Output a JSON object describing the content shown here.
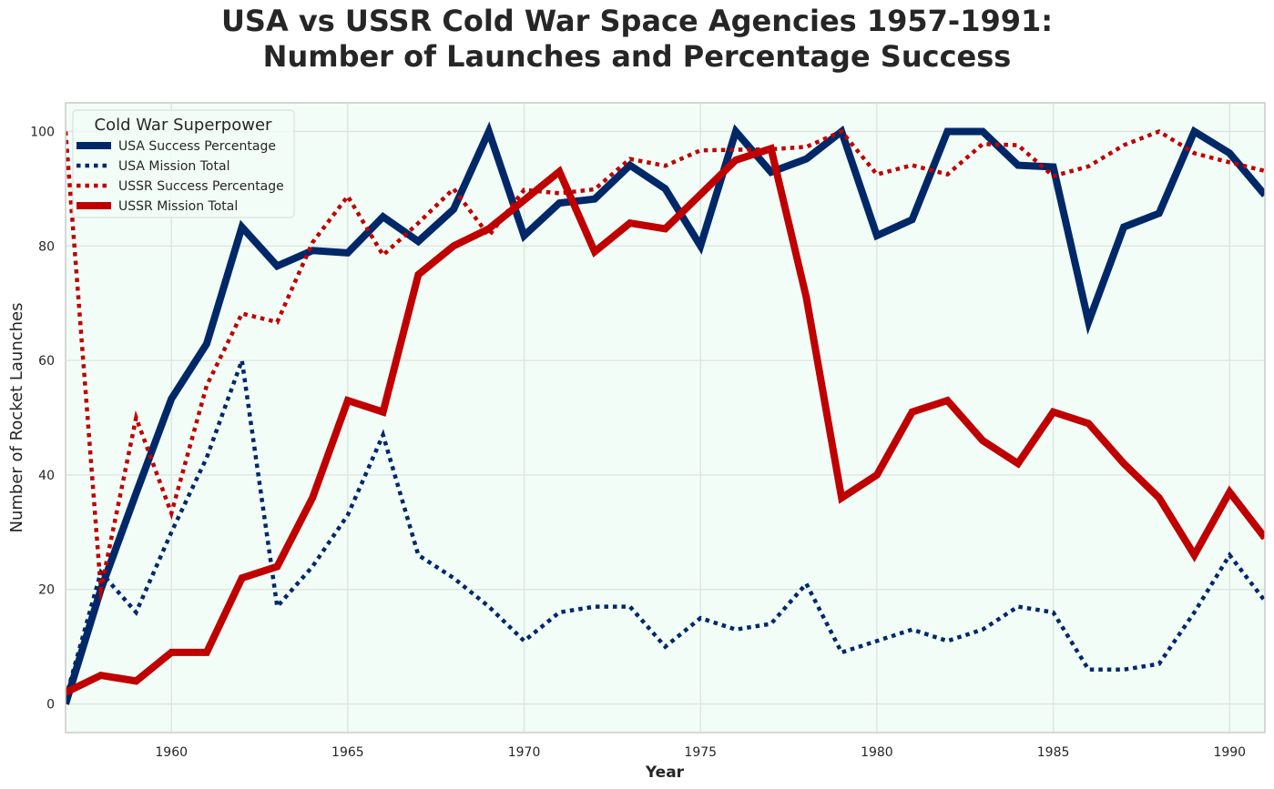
{
  "chart_data": {
    "type": "line",
    "title_line1": "USA vs USSR Cold War Space Agencies 1957-1991:",
    "title_line2": "Number of Launches and Percentage Success",
    "xlabel": "Year",
    "ylabel": "Number of Rocket Launches",
    "xlim": [
      1957,
      1991
    ],
    "ylim": [
      -5,
      105
    ],
    "xticks": [
      1960,
      1965,
      1970,
      1975,
      1980,
      1985,
      1990
    ],
    "yticks": [
      0,
      20,
      40,
      60,
      80,
      100
    ],
    "grid": true,
    "legend_title": "Cold War Superpower",
    "legend_position": "upper-left",
    "colors": {
      "usa": "#002868",
      "ussr": "#C00000",
      "plot_background": "#F2FDF7",
      "grid": "#DDE3E0"
    },
    "x": [
      1957,
      1958,
      1959,
      1960,
      1961,
      1962,
      1963,
      1964,
      1965,
      1966,
      1967,
      1968,
      1969,
      1970,
      1971,
      1972,
      1973,
      1974,
      1975,
      1976,
      1977,
      1978,
      1979,
      1980,
      1981,
      1982,
      1983,
      1984,
      1985,
      1986,
      1987,
      1988,
      1989,
      1990,
      1991
    ],
    "series": [
      {
        "name": "USA Success Percentage",
        "color": "#002868",
        "style": "solid",
        "values": [
          0,
          20,
          36.8,
          53.3,
          62.9,
          83.3,
          76.5,
          79.2,
          78.8,
          85.1,
          80.8,
          86.4,
          100,
          81.8,
          87.5,
          88.2,
          94.1,
          90,
          80,
          100,
          92.9,
          95.2,
          100,
          81.8,
          84.6,
          100,
          100,
          94.1,
          93.8,
          66.7,
          83.3,
          85.7,
          100,
          96.2,
          88.9
        ]
      },
      {
        "name": "USA Mission Total",
        "color": "#002868",
        "style": "dotted",
        "values": [
          1,
          23,
          16,
          30,
          43,
          60,
          17,
          24,
          33,
          47,
          26,
          22,
          17,
          11,
          16,
          17,
          17,
          10,
          15,
          13,
          14,
          21,
          9,
          11,
          13,
          11,
          13,
          17,
          16,
          6,
          6,
          7,
          16,
          26,
          18
        ]
      },
      {
        "name": "USSR Success Percentage",
        "color": "#C00000",
        "style": "dotted",
        "values": [
          100,
          20,
          50,
          33.3,
          55.6,
          68.2,
          66.7,
          80.6,
          88.7,
          78.4,
          84,
          90,
          81.8,
          89.8,
          89.2,
          89.9,
          95.2,
          94,
          96.7,
          96.8,
          96.9,
          97.3,
          100,
          92.5,
          94.1,
          92.5,
          97.8,
          97.6,
          92.2,
          93.9,
          97.6,
          100,
          96.2,
          94.6,
          93.1
        ]
      },
      {
        "name": "USSR Mission Total",
        "color": "#C00000",
        "style": "solid",
        "values": [
          2,
          5,
          4,
          9,
          9,
          22,
          24,
          36,
          53,
          51,
          75,
          80,
          83,
          88,
          93,
          79,
          84,
          83,
          89,
          95,
          97,
          71,
          36,
          40,
          51,
          53,
          46,
          42,
          51,
          49,
          42,
          36,
          26,
          37,
          29
        ]
      }
    ]
  }
}
